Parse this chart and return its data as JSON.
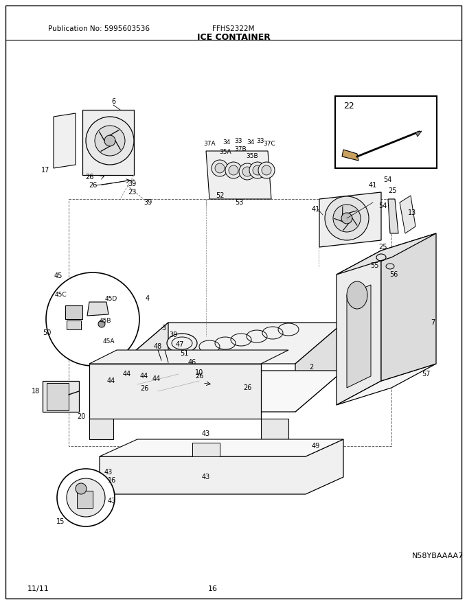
{
  "pub_no": "Publication No: 5995603536",
  "model": "FFHS2322M",
  "title": "ICE CONTAINER",
  "bottom_left": "11/11",
  "bottom_center": "16",
  "bottom_right": "N58YBAAAA7",
  "bg_color": "#ffffff",
  "border_color": "#000000",
  "fig_width": 6.8,
  "fig_height": 8.8,
  "dpi": 100
}
